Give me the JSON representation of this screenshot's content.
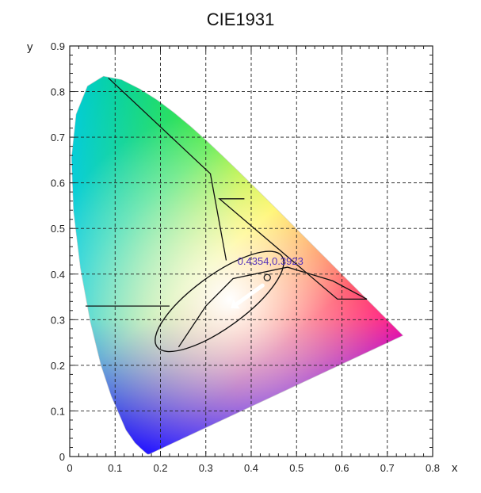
{
  "chart_data": {
    "type": "scatter",
    "title": "CIE1931",
    "xlabel": "x",
    "ylabel": "y",
    "xlim": [
      0,
      0.8
    ],
    "ylim": [
      0,
      0.9
    ],
    "x_ticks": [
      "0",
      "0.1",
      "0.2",
      "0.3",
      "0.4",
      "0.5",
      "0.6",
      "0.7",
      "0.8"
    ],
    "y_ticks": [
      "0",
      "0.1",
      "0.2",
      "0.3",
      "0.4",
      "0.5",
      "0.6",
      "0.7",
      "0.8",
      "0.9"
    ],
    "grid": "dashed",
    "spectral_locus": [
      [
        0.175,
        0.005
      ],
      [
        0.1741,
        0.005
      ],
      [
        0.1726,
        0.0048
      ],
      [
        0.1714,
        0.0051
      ],
      [
        0.1689,
        0.0069
      ],
      [
        0.1644,
        0.0109
      ],
      [
        0.1566,
        0.0177
      ],
      [
        0.144,
        0.0297
      ],
      [
        0.1241,
        0.0578
      ],
      [
        0.0913,
        0.1327
      ],
      [
        0.0687,
        0.2007
      ],
      [
        0.0454,
        0.295
      ],
      [
        0.0235,
        0.4127
      ],
      [
        0.0082,
        0.5384
      ],
      [
        0.0039,
        0.6548
      ],
      [
        0.0139,
        0.7502
      ],
      [
        0.0389,
        0.812
      ],
      [
        0.0743,
        0.8338
      ],
      [
        0.1142,
        0.8262
      ],
      [
        0.1547,
        0.8059
      ],
      [
        0.1929,
        0.7816
      ],
      [
        0.2296,
        0.7543
      ],
      [
        0.2658,
        0.7243
      ],
      [
        0.3016,
        0.6923
      ],
      [
        0.3373,
        0.6589
      ],
      [
        0.3731,
        0.6245
      ],
      [
        0.4087,
        0.5896
      ],
      [
        0.4441,
        0.5547
      ],
      [
        0.4788,
        0.5202
      ],
      [
        0.5125,
        0.4866
      ],
      [
        0.5448,
        0.4544
      ],
      [
        0.5752,
        0.4242
      ],
      [
        0.6029,
        0.3965
      ],
      [
        0.627,
        0.3725
      ],
      [
        0.6482,
        0.3514
      ],
      [
        0.6658,
        0.334
      ],
      [
        0.6801,
        0.3197
      ],
      [
        0.6915,
        0.3083
      ],
      [
        0.7006,
        0.2993
      ],
      [
        0.714,
        0.2859
      ],
      [
        0.7347,
        0.2653
      ]
    ],
    "measured_point": {
      "x": 0.4354,
      "y": 0.3923,
      "label": "0.4354,0.3923"
    },
    "colors": {
      "point_label": "#5533bb",
      "overlay_lines": "#111111",
      "arrow": "#ffffff",
      "grid": "#222222"
    },
    "overlay_ellipse": {
      "cx": 0.33,
      "cy": 0.34,
      "rx": 0.17,
      "ry": 0.058,
      "rotation_deg": 36
    },
    "overlay_lines": [
      [
        [
          0.085,
          0.83
        ],
        [
          0.31,
          0.62
        ],
        [
          0.345,
          0.43
        ]
      ],
      [
        [
          0.385,
          0.565
        ],
        [
          0.33,
          0.565
        ],
        [
          0.59,
          0.345
        ],
        [
          0.655,
          0.345
        ]
      ],
      [
        [
          0.035,
          0.33
        ],
        [
          0.195,
          0.33
        ],
        [
          0.22,
          0.33
        ]
      ],
      [
        [
          0.24,
          0.24
        ],
        [
          0.3,
          0.33
        ],
        [
          0.36,
          0.39
        ],
        [
          0.48,
          0.415
        ],
        [
          0.58,
          0.385
        ],
        [
          0.655,
          0.345
        ]
      ]
    ],
    "direction_arrow": {
      "from": [
        0.425,
        0.375
      ],
      "to": [
        0.355,
        0.325
      ]
    }
  }
}
